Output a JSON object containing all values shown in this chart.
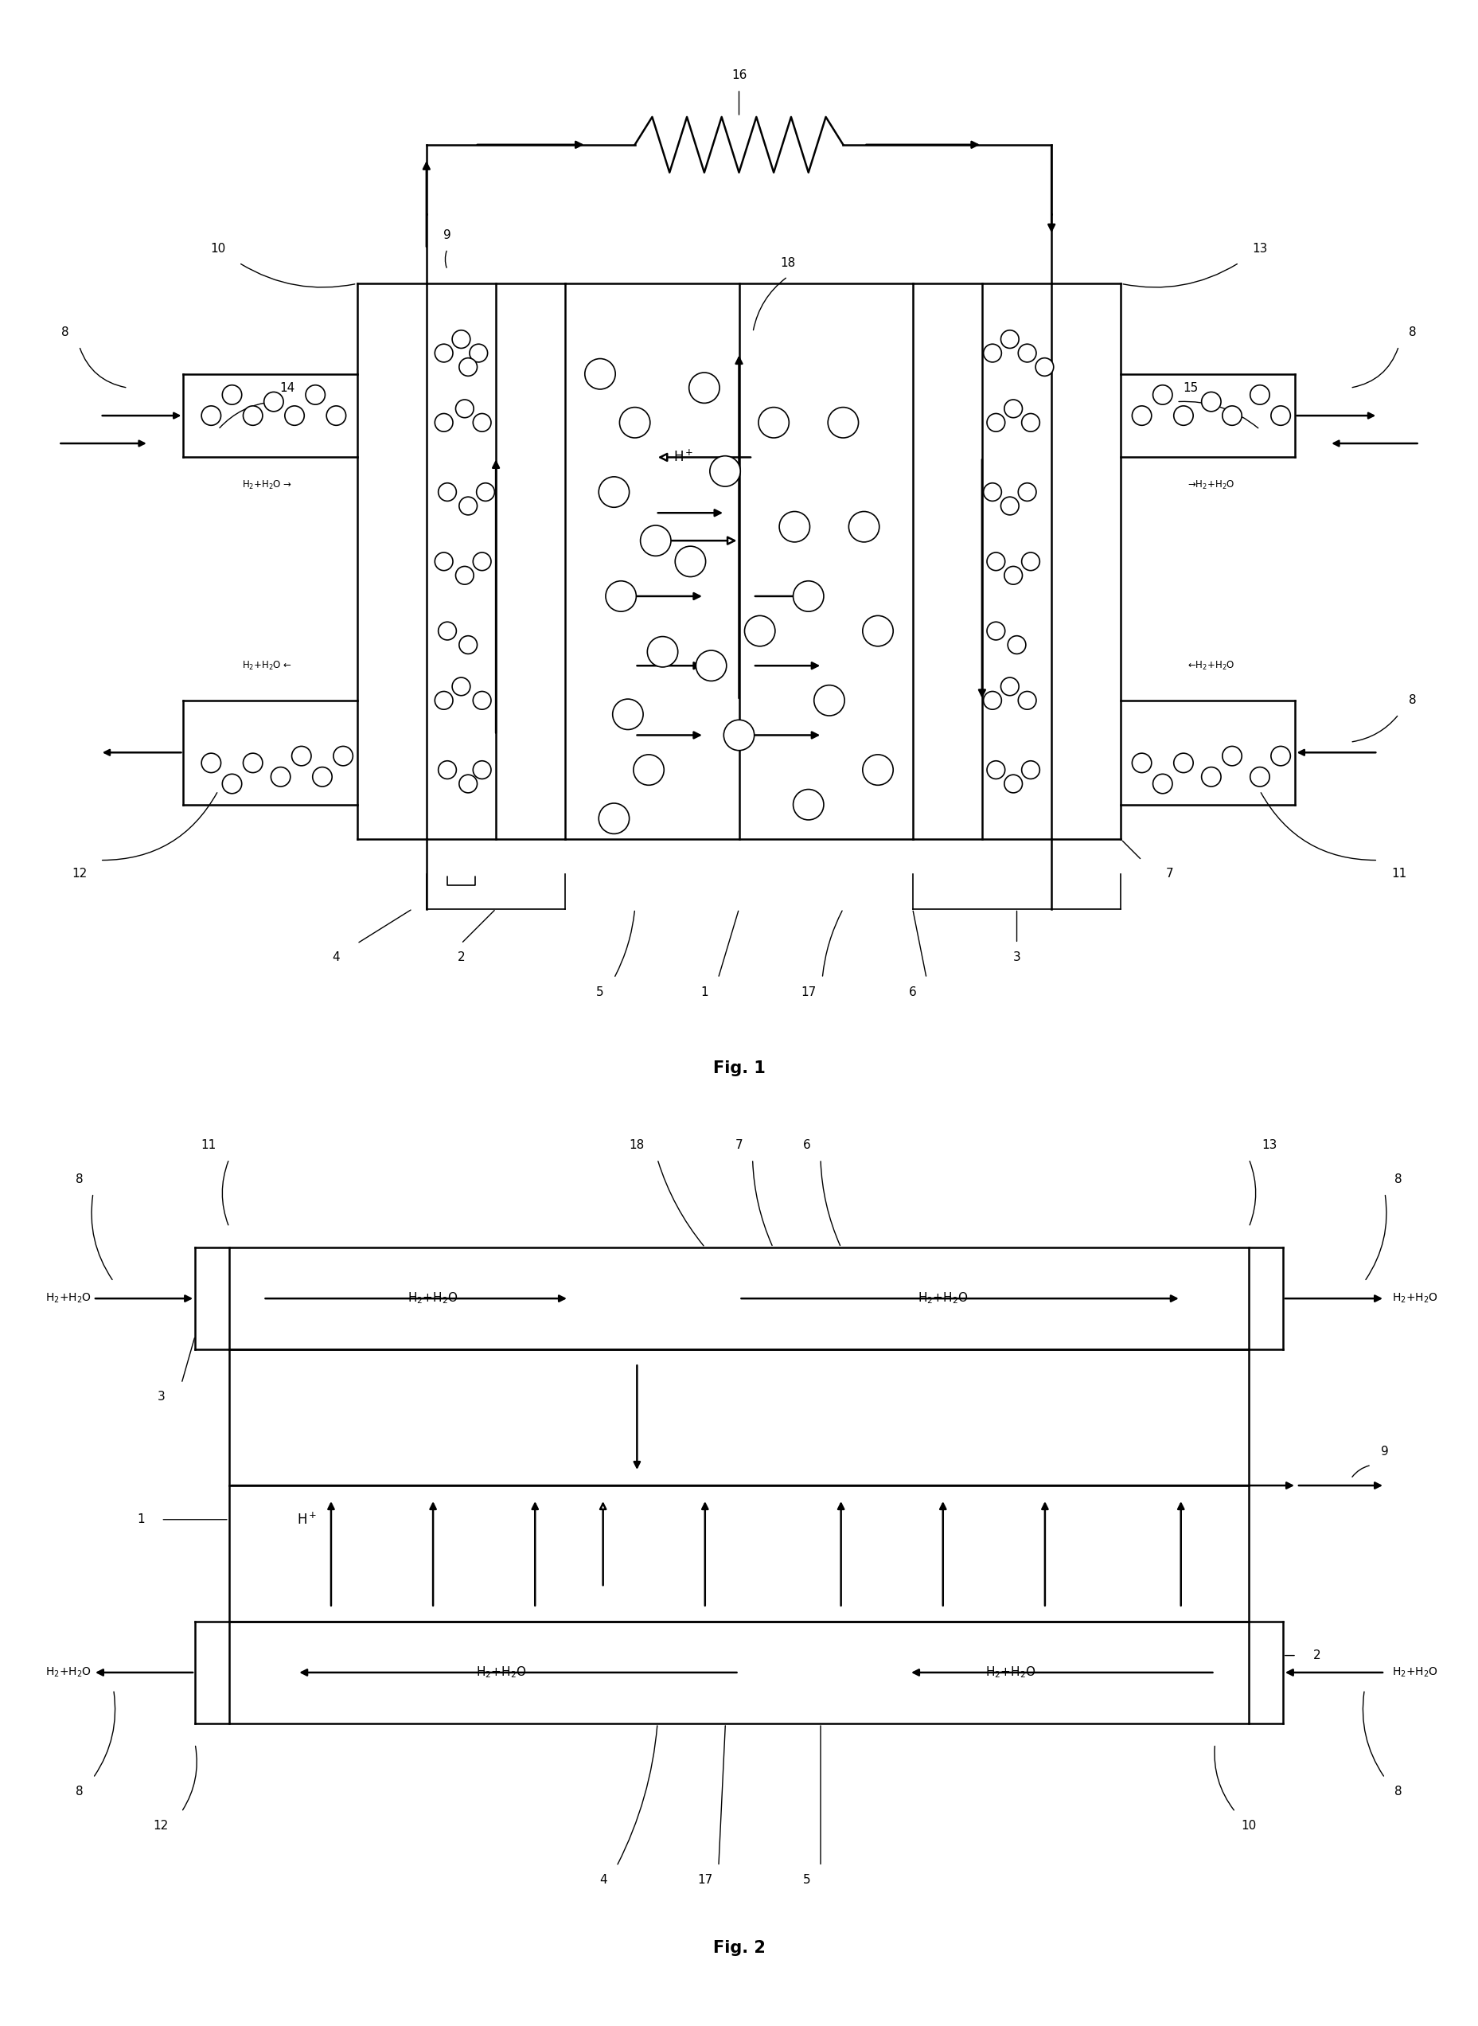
{
  "fig_width": 18.57,
  "fig_height": 25.45,
  "bg_color": "#ffffff",
  "line_color": "#000000",
  "fig1_title": "Fig. 1",
  "fig2_title": "Fig. 2"
}
